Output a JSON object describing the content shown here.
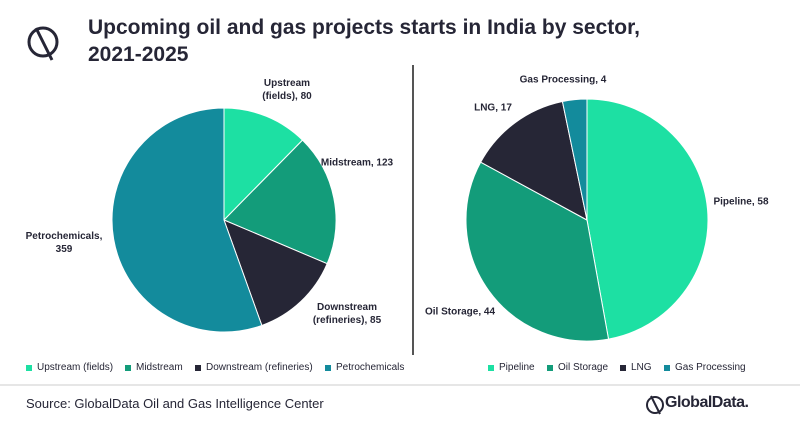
{
  "title": "Upcoming oil and gas projects starts in India by sector, 2021-2025",
  "source": "Source: GlobalData Oil and Gas Intelligence Center",
  "logo": "GlobalData.",
  "chart_data": [
    {
      "type": "pie",
      "categories": [
        "Upstream (fields)",
        "Midstream",
        "Downstream (refineries)",
        "Petrochemicals"
      ],
      "values": [
        80,
        123,
        85,
        359
      ],
      "value_labels": [
        "Upstream (fields), 80",
        "Midstream, 123",
        "Downstream (refineries), 85",
        "Petrochemicals, 359"
      ],
      "colors": [
        "#1de0a3",
        "#139c7a",
        "#262636",
        "#138b9c"
      ],
      "legend": "bottom"
    },
    {
      "type": "pie",
      "categories": [
        "Pipeline",
        "Oil Storage",
        "LNG",
        "Gas Processing"
      ],
      "values": [
        58,
        44,
        17,
        4
      ],
      "value_labels": [
        "Pipeline, 58",
        "Oil Storage, 44",
        "LNG, 17",
        "Gas Processing, 4"
      ],
      "colors": [
        "#1de0a3",
        "#139c7a",
        "#262636",
        "#138b9c"
      ],
      "legend": "bottom"
    }
  ]
}
